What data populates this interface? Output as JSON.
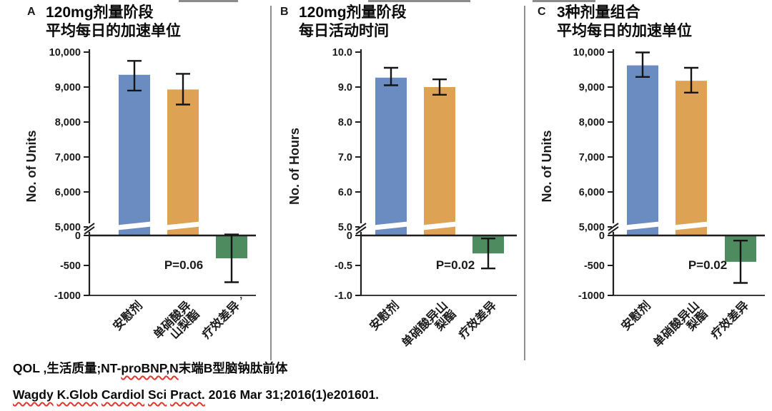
{
  "colors": {
    "blue": "#6B8CC1",
    "orange": "#DEA254",
    "green": "#4E8B5F",
    "error_bar": "#151515",
    "axis": "#1f1f1f",
    "text": "#1a1a1a",
    "divider": "#8f8f8f",
    "wavy_underline": "#e0372e"
  },
  "chart_data": [
    {
      "type": "bar",
      "panel_label": "A",
      "title_lines": [
        "120mg剂量阶段",
        "平均每日的加速单位"
      ],
      "ylabel": "No. of Units",
      "categories": [
        "安慰剂",
        "单硝酸异山梨酯",
        "疗效差异"
      ],
      "upper_axis": {
        "min": 5000,
        "max": 10000,
        "ticks": [
          {
            "v": 10000,
            "label": "10,000"
          },
          {
            "v": 9000,
            "label": "9,000"
          },
          {
            "v": 8000,
            "label": "8,000"
          },
          {
            "v": 7000,
            "label": "7,000"
          },
          {
            "v": 6000,
            "label": "6,000"
          },
          {
            "v": 5000,
            "label": "5,000"
          }
        ]
      },
      "lower_axis": {
        "min": -1000,
        "max": 0,
        "ticks": [
          {
            "v": 0,
            "label": "0"
          },
          {
            "v": -500,
            "label": "-500"
          },
          {
            "v": -1000,
            "label": "-1000"
          }
        ]
      },
      "axis_break": true,
      "p_value_label": "P=0.06",
      "stray_mark": "’",
      "bars": [
        {
          "label_lines": [
            "安慰剂"
          ],
          "value": 9350,
          "ci_low": 8900,
          "ci_high": 9750,
          "color": "blue",
          "segment": "upper"
        },
        {
          "label_lines": [
            "单硝酸异",
            "山梨酯"
          ],
          "value": 8930,
          "ci_low": 8500,
          "ci_high": 9380,
          "color": "orange",
          "segment": "upper"
        },
        {
          "label_lines": [
            "疗效差异"
          ],
          "value": -381,
          "ci_low": -780,
          "ci_high": 17,
          "color": "green",
          "segment": "lower"
        }
      ]
    },
    {
      "type": "bar",
      "panel_label": "B",
      "title_lines": [
        "120mg剂量阶段",
        "每日活动时间"
      ],
      "ylabel": "No. of Hours",
      "categories": [
        "安慰剂",
        "单硝酸异山梨酯",
        "疗效差异"
      ],
      "upper_axis": {
        "min": 5.0,
        "max": 10.0,
        "ticks": [
          {
            "v": 10.0,
            "label": "10.0"
          },
          {
            "v": 9.0,
            "label": "9.0"
          },
          {
            "v": 8.0,
            "label": "8.0"
          },
          {
            "v": 7.0,
            "label": "7.0"
          },
          {
            "v": 6.0,
            "label": "6.0"
          },
          {
            "v": 5.0,
            "label": "5.0"
          }
        ]
      },
      "lower_axis": {
        "min": -1.0,
        "max": 0,
        "ticks": [
          {
            "v": 0,
            "label": "0"
          },
          {
            "v": -0.5,
            "label": "-0.5"
          },
          {
            "v": -1.0,
            "label": "-1.0"
          }
        ]
      },
      "axis_break": true,
      "p_value_label": "P=0.02",
      "stray_mark": "",
      "bars": [
        {
          "label_lines": [
            "安慰剂"
          ],
          "value": 9.27,
          "ci_low": 9.05,
          "ci_high": 9.55,
          "color": "blue",
          "segment": "upper"
        },
        {
          "label_lines": [
            "单硝酸异山",
            "梨酯"
          ],
          "value": 9.0,
          "ci_low": 8.78,
          "ci_high": 9.22,
          "color": "orange",
          "segment": "upper"
        },
        {
          "label_lines": [
            "疗效差异"
          ],
          "value": -0.3,
          "ci_low": -0.55,
          "ci_high": -0.05,
          "color": "green",
          "segment": "lower"
        }
      ]
    },
    {
      "type": "bar",
      "panel_label": "C",
      "title_lines": [
        "3种剂量组合",
        "平均每日的加速单位"
      ],
      "ylabel": "No. of Units",
      "categories": [
        "安慰剂",
        "单硝酸异山梨酯",
        "疗效差异"
      ],
      "upper_axis": {
        "min": 5000,
        "max": 10000,
        "ticks": [
          {
            "v": 10000,
            "label": "10,000"
          },
          {
            "v": 9000,
            "label": "9,000"
          },
          {
            "v": 8000,
            "label": "8,000"
          },
          {
            "v": 7000,
            "label": "7,000"
          },
          {
            "v": 6000,
            "label": "6,000"
          },
          {
            "v": 5000,
            "label": "5,000"
          }
        ]
      },
      "lower_axis": {
        "min": -1000,
        "max": 0,
        "ticks": [
          {
            "v": 0,
            "label": "0"
          },
          {
            "v": -500,
            "label": "-500"
          },
          {
            "v": -1000,
            "label": "-1000"
          }
        ]
      },
      "axis_break": true,
      "p_value_label": "P=0.02",
      "stray_mark": "",
      "bars": [
        {
          "label_lines": [
            "安慰剂"
          ],
          "value": 9620,
          "ci_low": 9290,
          "ci_high": 9990,
          "color": "blue",
          "segment": "upper"
        },
        {
          "label_lines": [
            "单硝酸异山",
            "梨酯"
          ],
          "value": 9180,
          "ci_low": 8840,
          "ci_high": 9550,
          "color": "orange",
          "segment": "upper"
        },
        {
          "label_lines": [
            "疗效差异"
          ],
          "value": -439,
          "ci_low": -792,
          "ci_high": -86,
          "color": "green",
          "segment": "lower"
        }
      ]
    }
  ],
  "footer": {
    "line1_segments": [
      {
        "text": "QOL ,生活质量;NT-",
        "wavy": false
      },
      {
        "text": "proBNP,N",
        "wavy": true
      },
      {
        "text": "末端B型脑钠肽前体",
        "wavy": false
      }
    ],
    "line2_segments": [
      {
        "text": "Wagdy",
        "wavy": true
      },
      {
        "text": " ",
        "wavy": false
      },
      {
        "text": "K.Glob",
        "wavy": true
      },
      {
        "text": " ",
        "wavy": false
      },
      {
        "text": "Cardiol",
        "wavy": true
      },
      {
        "text": " ",
        "wavy": false
      },
      {
        "text": "Sci",
        "wavy": true
      },
      {
        "text": " ",
        "wavy": false
      },
      {
        "text": "Pract.",
        "wavy": true
      },
      {
        "text": " 2016 Mar 31;2016(1)e201601.",
        "wavy": false
      }
    ]
  }
}
